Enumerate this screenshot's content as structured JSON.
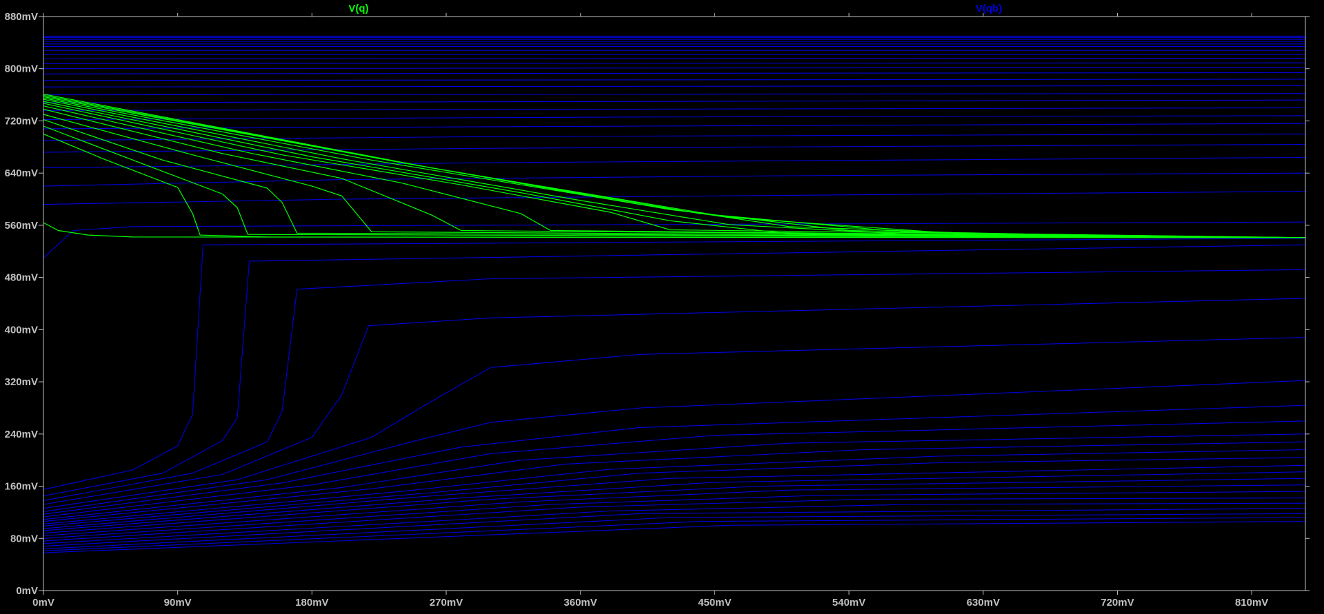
{
  "chart_data": {
    "type": "line",
    "xlim": [
      0,
      846
    ],
    "ylim": [
      0,
      880
    ],
    "x_ticks": [
      0,
      90,
      180,
      270,
      360,
      450,
      540,
      630,
      720,
      810
    ],
    "y_ticks": [
      0,
      80,
      160,
      240,
      320,
      400,
      480,
      560,
      640,
      720,
      800,
      880
    ],
    "x_tick_labels": [
      "0mV",
      "90mV",
      "180mV",
      "270mV",
      "360mV",
      "450mV",
      "540mV",
      "630mV",
      "720mV",
      "810mV"
    ],
    "y_tick_labels": [
      "0mV",
      "80mV",
      "160mV",
      "240mV",
      "320mV",
      "400mV",
      "480mV",
      "560mV",
      "640mV",
      "720mV",
      "800mV",
      "880mV"
    ],
    "grid": false,
    "legend_position": "top",
    "colors": {
      "background": "#000000",
      "axes": "#c0c0c0",
      "tick_text": "#c0c0c0",
      "vq": "#00ff00",
      "vqb": "#0000e0"
    },
    "series": [
      {
        "name": "V(q)",
        "color": "#00ff00",
        "curves": [
          [
            [
              0,
              564
            ],
            [
              10,
              552
            ],
            [
              30,
              545
            ],
            [
              60,
              542
            ],
            [
              846,
              541
            ]
          ],
          [
            [
              0,
              700
            ],
            [
              40,
              662
            ],
            [
              90,
              618
            ],
            [
              100,
              578
            ],
            [
              105,
              545
            ],
            [
              150,
              542
            ],
            [
              846,
              541
            ]
          ],
          [
            [
              0,
              712
            ],
            [
              60,
              660
            ],
            [
              120,
              608
            ],
            [
              130,
              587
            ],
            [
              137,
              546
            ],
            [
              846,
              541
            ]
          ],
          [
            [
              0,
              722
            ],
            [
              80,
              660
            ],
            [
              150,
              617
            ],
            [
              160,
              595
            ],
            [
              170,
              548
            ],
            [
              846,
              541
            ]
          ],
          [
            [
              0,
              730
            ],
            [
              100,
              668
            ],
            [
              180,
              620
            ],
            [
              200,
              605
            ],
            [
              220,
              550
            ],
            [
              846,
              541
            ]
          ],
          [
            [
              0,
              738
            ],
            [
              120,
              670
            ],
            [
              200,
              632
            ],
            [
              260,
              576
            ],
            [
              280,
              552
            ],
            [
              846,
              541
            ]
          ],
          [
            [
              0,
              743
            ],
            [
              140,
              670
            ],
            [
              240,
              625
            ],
            [
              320,
              578
            ],
            [
              340,
              552
            ],
            [
              846,
              541
            ]
          ],
          [
            [
              0,
              747
            ],
            [
              160,
              668
            ],
            [
              280,
              622
            ],
            [
              380,
              580
            ],
            [
              420,
              553
            ],
            [
              846,
              541
            ]
          ],
          [
            [
              0,
              750
            ],
            [
              180,
              665
            ],
            [
              320,
              610
            ],
            [
              420,
              567
            ],
            [
              500,
              547
            ],
            [
              846,
              541
            ]
          ],
          [
            [
              0,
              753
            ],
            [
              200,
              662
            ],
            [
              360,
              598
            ],
            [
              460,
              561
            ],
            [
              600,
              544
            ],
            [
              846,
              541
            ]
          ],
          [
            [
              0,
              755
            ],
            [
              220,
              660
            ],
            [
              400,
              592
            ],
            [
              500,
              558
            ],
            [
              680,
              543
            ],
            [
              846,
              541
            ]
          ],
          [
            [
              0,
              757
            ],
            [
              240,
              656
            ],
            [
              420,
              584
            ],
            [
              540,
              552
            ],
            [
              760,
              542
            ],
            [
              846,
              541
            ]
          ],
          [
            [
              0,
              759
            ],
            [
              250,
              652
            ],
            [
              440,
              578
            ],
            [
              580,
              549
            ],
            [
              846,
              541
            ]
          ],
          [
            [
              0,
              761
            ],
            [
              260,
              648
            ],
            [
              460,
              572
            ],
            [
              620,
              546
            ],
            [
              846,
              541
            ]
          ]
        ]
      },
      {
        "name": "V(qb)",
        "color": "#0000e0",
        "curves": [
          [
            [
              0,
              510
            ],
            [
              20,
              552
            ],
            [
              60,
              558
            ],
            [
              846,
              565
            ]
          ],
          [
            [
              0,
              592
            ],
            [
              200,
              600
            ],
            [
              500,
              606
            ],
            [
              846,
              612
            ]
          ],
          [
            [
              0,
              620
            ],
            [
              200,
              630
            ],
            [
              500,
              636
            ],
            [
              846,
              640
            ]
          ],
          [
            [
              0,
              648
            ],
            [
              300,
              656
            ],
            [
              846,
              664
            ]
          ],
          [
            [
              0,
              672
            ],
            [
              300,
              678
            ],
            [
              846,
              684
            ]
          ],
          [
            [
              0,
              690
            ],
            [
              300,
              696
            ],
            [
              846,
              700
            ]
          ],
          [
            [
              0,
              708
            ],
            [
              400,
              712
            ],
            [
              846,
              716
            ]
          ],
          [
            [
              0,
              722
            ],
            [
              400,
              726
            ],
            [
              846,
              728
            ]
          ],
          [
            [
              0,
              736
            ],
            [
              400,
              738
            ],
            [
              846,
              740
            ]
          ],
          [
            [
              0,
              748
            ],
            [
              846,
              752
            ]
          ],
          [
            [
              0,
              760
            ],
            [
              846,
              762
            ]
          ],
          [
            [
              0,
              772
            ],
            [
              846,
              774
            ]
          ],
          [
            [
              0,
              782
            ],
            [
              846,
              784
            ]
          ],
          [
            [
              0,
              792
            ],
            [
              846,
              794
            ]
          ],
          [
            [
              0,
              800
            ],
            [
              846,
              802
            ]
          ],
          [
            [
              0,
              808
            ],
            [
              846,
              809
            ]
          ],
          [
            [
              0,
              815
            ],
            [
              846,
              816
            ]
          ],
          [
            [
              0,
              822
            ],
            [
              846,
              822
            ]
          ],
          [
            [
              0,
              828
            ],
            [
              846,
              828
            ]
          ],
          [
            [
              0,
              834
            ],
            [
              846,
              834
            ]
          ],
          [
            [
              0,
              838
            ],
            [
              846,
              838
            ]
          ],
          [
            [
              0,
              842
            ],
            [
              846,
              842
            ]
          ],
          [
            [
              0,
              845
            ],
            [
              846,
              845
            ]
          ],
          [
            [
              0,
              848
            ],
            [
              846,
              848
            ]
          ],
          [
            [
              0,
              850
            ],
            [
              846,
              850
            ]
          ],
          [
            [
              0,
              155
            ],
            [
              60,
              185
            ],
            [
              90,
              222
            ],
            [
              100,
              270
            ],
            [
              107,
              530
            ],
            [
              846,
              540
            ]
          ],
          [
            [
              0,
              145
            ],
            [
              80,
              180
            ],
            [
              120,
              230
            ],
            [
              130,
              265
            ],
            [
              138,
              505
            ],
            [
              846,
              530
            ]
          ],
          [
            [
              0,
              138
            ],
            [
              100,
              180
            ],
            [
              150,
              228
            ],
            [
              160,
              275
            ],
            [
              170,
              462
            ],
            [
              300,
              478
            ],
            [
              846,
              492
            ]
          ],
          [
            [
              0,
              132
            ],
            [
              120,
              178
            ],
            [
              180,
              235
            ],
            [
              200,
              300
            ],
            [
              218,
              406
            ],
            [
              300,
              418
            ],
            [
              846,
              448
            ]
          ],
          [
            [
              0,
              126
            ],
            [
              130,
              170
            ],
            [
              220,
              235
            ],
            [
              260,
              290
            ],
            [
              300,
              342
            ],
            [
              400,
              362
            ],
            [
              846,
              388
            ]
          ],
          [
            [
              0,
              121
            ],
            [
              150,
              170
            ],
            [
              250,
              230
            ],
            [
              300,
              258
            ],
            [
              400,
              280
            ],
            [
              846,
              322
            ]
          ],
          [
            [
              0,
              117
            ],
            [
              160,
              165
            ],
            [
              280,
              220
            ],
            [
              400,
              250
            ],
            [
              846,
              284
            ]
          ],
          [
            [
              0,
              113
            ],
            [
              180,
              162
            ],
            [
              300,
              210
            ],
            [
              450,
              238
            ],
            [
              846,
              260
            ]
          ],
          [
            [
              0,
              109
            ],
            [
              200,
              158
            ],
            [
              320,
              200
            ],
            [
              500,
              226
            ],
            [
              846,
              240
            ]
          ],
          [
            [
              0,
              106
            ],
            [
              220,
              156
            ],
            [
              350,
              194
            ],
            [
              550,
              216
            ],
            [
              846,
              228
            ]
          ],
          [
            [
              0,
              102
            ],
            [
              240,
              152
            ],
            [
              380,
              186
            ],
            [
              600,
              206
            ],
            [
              846,
              216
            ]
          ],
          [
            [
              0,
              99
            ],
            [
              260,
              150
            ],
            [
              400,
              180
            ],
            [
              600,
              196
            ],
            [
              846,
              204
            ]
          ],
          [
            [
              0,
              95
            ],
            [
              260,
              145
            ],
            [
              420,
              172
            ],
            [
              846,
              192
            ]
          ],
          [
            [
              0,
              92
            ],
            [
              280,
              142
            ],
            [
              450,
              166
            ],
            [
              846,
              182
            ]
          ],
          [
            [
              0,
              88
            ],
            [
              300,
              140
            ],
            [
              480,
              160
            ],
            [
              846,
              172
            ]
          ],
          [
            [
              0,
              84
            ],
            [
              320,
              136
            ],
            [
              500,
              154
            ],
            [
              846,
              162
            ]
          ],
          [
            [
              0,
              80
            ],
            [
              340,
              132
            ],
            [
              520,
              146
            ],
            [
              846,
              152
            ]
          ],
          [
            [
              0,
              76
            ],
            [
              360,
              128
            ],
            [
              550,
              140
            ],
            [
              846,
              142
            ]
          ],
          [
            [
              0,
              72
            ],
            [
              380,
              122
            ],
            [
              580,
              132
            ],
            [
              846,
              134
            ]
          ],
          [
            [
              0,
              68
            ],
            [
              400,
              118
            ],
            [
              846,
              126
            ]
          ],
          [
            [
              0,
              64
            ],
            [
              420,
              112
            ],
            [
              846,
              118
            ]
          ],
          [
            [
              0,
              61
            ],
            [
              440,
              106
            ],
            [
              846,
              112
            ]
          ],
          [
            [
              0,
              58
            ],
            [
              460,
              100
            ],
            [
              846,
              106
            ]
          ]
        ]
      }
    ]
  }
}
